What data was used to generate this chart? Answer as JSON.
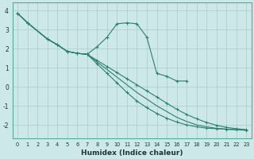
{
  "xlabel": "Humidex (Indice chaleur)",
  "bg_color": "#cce8e8",
  "grid_color": "#aacccc",
  "line_color": "#2d7f70",
  "ylim": [
    -2.7,
    4.4
  ],
  "xlim": [
    -0.5,
    23.5
  ],
  "yticks": [
    -2,
    -1,
    0,
    1,
    2,
    3,
    4
  ],
  "xticks": [
    0,
    1,
    2,
    3,
    4,
    5,
    6,
    7,
    8,
    9,
    10,
    11,
    12,
    13,
    14,
    15,
    16,
    17,
    18,
    19,
    20,
    21,
    22,
    23
  ],
  "line_wavy_x": [
    0,
    1,
    3,
    4,
    5,
    6,
    7,
    8,
    9,
    10,
    11,
    12,
    13,
    14,
    15,
    16,
    17
  ],
  "line_wavy_y": [
    3.85,
    3.35,
    2.5,
    2.2,
    1.85,
    1.75,
    1.7,
    2.1,
    2.6,
    3.3,
    3.35,
    3.3,
    2.6,
    0.7,
    0.55,
    0.3,
    0.3
  ],
  "trend1_x": [
    0,
    1,
    3,
    4,
    5,
    6,
    7,
    8,
    9,
    10,
    11,
    12,
    13,
    14,
    15,
    16,
    17,
    18,
    19,
    20,
    21,
    22,
    23
  ],
  "trend1_y": [
    3.85,
    3.35,
    2.5,
    2.2,
    1.85,
    1.75,
    1.7,
    1.38,
    1.06,
    0.74,
    0.42,
    0.1,
    -0.22,
    -0.54,
    -0.86,
    -1.18,
    -1.45,
    -1.68,
    -1.87,
    -2.02,
    -2.13,
    -2.2,
    -2.25
  ],
  "trend2_x": [
    0,
    1,
    3,
    4,
    5,
    6,
    7,
    8,
    9,
    10,
    11,
    12,
    13,
    14,
    15,
    16,
    17,
    18,
    19,
    20,
    21,
    22,
    23
  ],
  "trend2_y": [
    3.85,
    3.35,
    2.5,
    2.2,
    1.85,
    1.75,
    1.7,
    1.3,
    0.9,
    0.5,
    0.1,
    -0.3,
    -0.65,
    -1.0,
    -1.3,
    -1.6,
    -1.82,
    -2.0,
    -2.1,
    -2.18,
    -2.22,
    -2.26,
    -2.28
  ],
  "trend3_x": [
    0,
    1,
    3,
    4,
    5,
    6,
    7,
    8,
    9,
    10,
    11,
    12,
    13,
    14,
    15,
    16,
    17,
    18,
    19,
    20,
    21,
    22,
    23
  ],
  "trend3_y": [
    3.85,
    3.35,
    2.5,
    2.2,
    1.85,
    1.75,
    1.7,
    1.2,
    0.7,
    0.2,
    -0.3,
    -0.75,
    -1.1,
    -1.4,
    -1.65,
    -1.85,
    -2.0,
    -2.1,
    -2.17,
    -2.2,
    -2.23,
    -2.25,
    -2.27
  ]
}
